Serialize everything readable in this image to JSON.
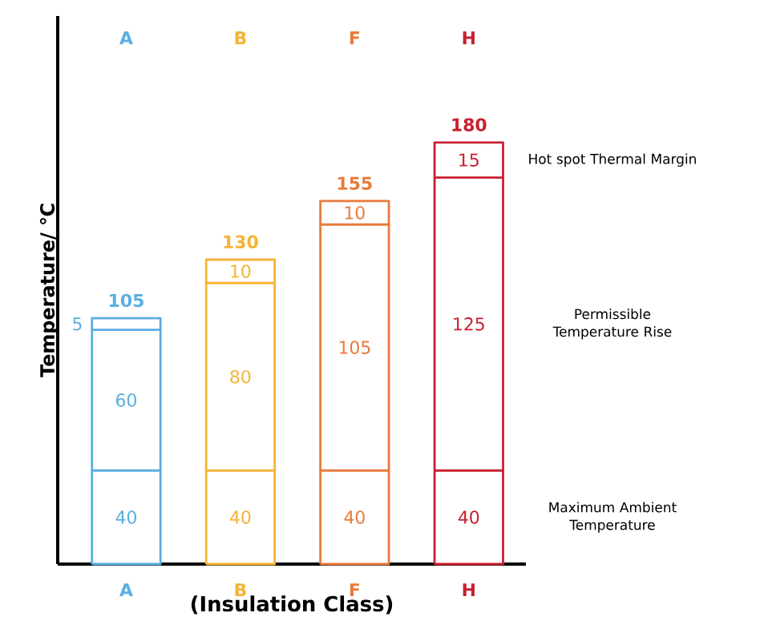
{
  "chart_data": {
    "type": "bar",
    "stacked": true,
    "data_labels": true,
    "legend": false,
    "categories": [
      "A",
      "B",
      "F",
      "H"
    ],
    "xlabel": "(Insulation Class)",
    "ylabel": "Temperature/ ℃",
    "totals": [
      "105",
      "130",
      "155",
      "180"
    ],
    "series": [
      {
        "name": "Maximum Ambient Temperature",
        "values": [
          40,
          40,
          40,
          40
        ],
        "colors": [
          "#5aaee0",
          "#f5b335",
          "#e87a3c",
          "#c8202f"
        ]
      },
      {
        "name": "Permissible Temperature Rise",
        "values": [
          60,
          80,
          105,
          125
        ],
        "colors": [
          "#5aaee0",
          "#f5b335",
          "#e87a3c",
          "#c8202f"
        ]
      },
      {
        "name": "Hot spot Thermal Margin",
        "values": [
          5,
          10,
          10,
          15
        ],
        "colors": [
          "#5aaee0",
          "#f5b335",
          "#e87a3c",
          "#c8202f"
        ]
      }
    ]
  }
}
